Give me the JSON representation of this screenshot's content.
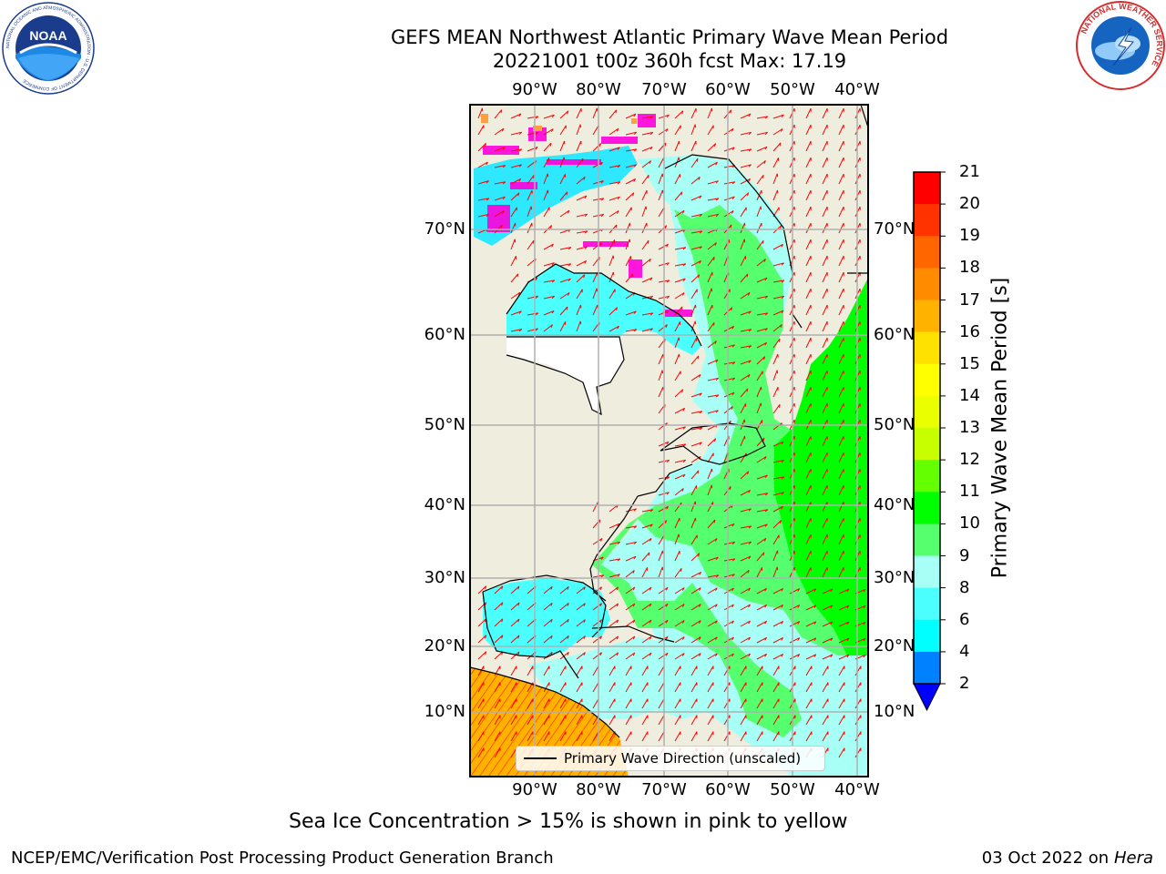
{
  "title": {
    "line1": "GEFS MEAN Northwest Atlantic Primary Wave Mean Period",
    "line2": "20221001 t00z 360h fcst   Max: 17.19"
  },
  "map": {
    "lon_labels_top": [
      "90°W",
      "80°W",
      "70°W",
      "60°W",
      "50°W",
      "40°W"
    ],
    "lon_labels_bottom": [
      "90°W",
      "80°W",
      "70°W",
      "60°W",
      "50°W",
      "40°W"
    ],
    "lat_labels_left": [
      "70°N",
      "60°N",
      "50°N",
      "40°N",
      "30°N",
      "20°N",
      "10°N"
    ],
    "lat_labels_right": [
      "70°N",
      "60°N",
      "50°N",
      "40°N",
      "30°N",
      "20°N",
      "10°N"
    ],
    "legend_label": "Primary Wave Direction (unscaled)",
    "colors": {
      "land": "#efedde",
      "grid": "#b0b0b0",
      "arrow": "#ff0000"
    }
  },
  "colorbar": {
    "title": "Primary Wave Mean Period [s]",
    "ticks": [
      "21",
      "20",
      "19",
      "18",
      "17",
      "16",
      "15",
      "14",
      "13",
      "12",
      "11",
      "10",
      "9",
      "8",
      "6",
      "4",
      "2"
    ],
    "colors": [
      "#ff0000",
      "#ff3300",
      "#ff6600",
      "#ff8c00",
      "#ffb300",
      "#ffe100",
      "#ffff00",
      "#eaff00",
      "#c8ff00",
      "#64ff00",
      "#00ff00",
      "#55ff6e",
      "#a7fff6",
      "#4cffff",
      "#00ffff",
      "#0081ff"
    ],
    "extend_color": "#0000ff"
  },
  "captions": {
    "sea_ice": "Sea Ice Concentration > 15% is shown in pink to yellow",
    "footer_left": "NCEP/EMC/Verification Post Processing Product Generation Branch",
    "footer_right_prefix": "03 Oct 2022 on ",
    "footer_right_host": "Hera"
  },
  "logos": {
    "noaa_text": "NOAA",
    "noaa_ring": "NATIONAL OCEANIC AND ATMOSPHERIC ADMINISTRATION · U.S. DEPARTMENT OF COMMERCE",
    "nws_ring": "NATIONAL WEATHER SERVICE"
  }
}
